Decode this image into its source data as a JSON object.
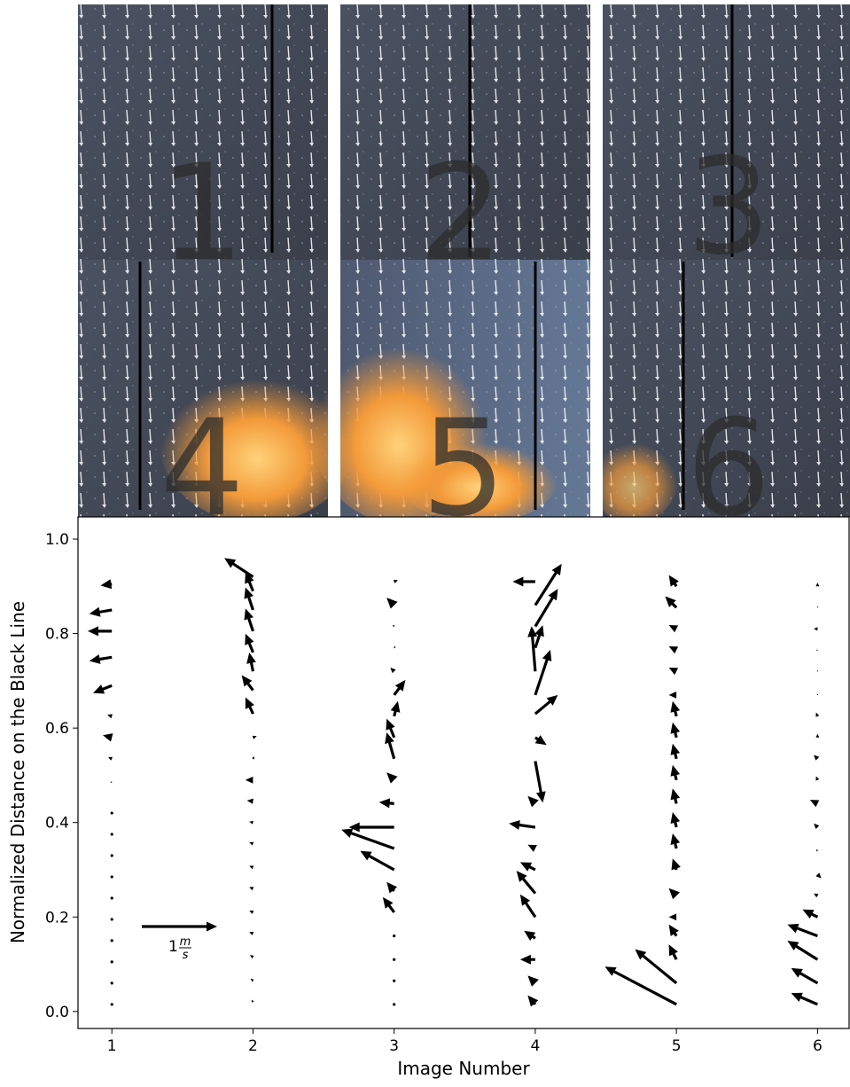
{
  "photos": {
    "labels": [
      "1",
      "2",
      "3",
      "4",
      "5",
      "6"
    ]
  },
  "chart_data": {
    "type": "quiver",
    "xlabel": "Image Number",
    "ylabel": "Normalized Distance on the Black Line",
    "xlim": [
      0.76,
      6.23
    ],
    "ylim": [
      -0.036,
      1.047
    ],
    "xticks": [
      1,
      2,
      3,
      4,
      5,
      6
    ],
    "yticks": [
      {
        "value": 0,
        "label": "0.0"
      },
      0.2,
      0.4,
      0.6,
      0.8,
      {
        "value": 1,
        "label": "1.0"
      }
    ],
    "color": "#000000",
    "key": {
      "value": 1,
      "label": "1",
      "unit_num": "m",
      "unit_den": "s"
    },
    "series": [
      {
        "x": 1,
        "y": [
          0.015,
          0.06,
          0.105,
          0.15,
          0.195,
          0.24,
          0.285,
          0.33,
          0.375,
          0.42,
          0.485,
          0.535,
          0.58,
          0.625,
          0.69,
          0.75,
          0.805,
          0.85,
          0.905
        ],
        "u": [
          0,
          0,
          0,
          0,
          0,
          0,
          0,
          0,
          0,
          0,
          -0.02,
          -0.05,
          -0.12,
          -0.06,
          -0.25,
          -0.3,
          -0.32,
          -0.3,
          -0.15
        ],
        "v": [
          0,
          0,
          0,
          0,
          0,
          0,
          0,
          0,
          0,
          0,
          0.01,
          0.02,
          0.03,
          0.02,
          -0.1,
          -0.05,
          0,
          -0.05,
          -0.02
        ]
      },
      {
        "x": 2,
        "y": [
          0.02,
          0.065,
          0.115,
          0.165,
          0.21,
          0.26,
          0.305,
          0.355,
          0.4,
          0.445,
          0.49,
          0.535,
          0.58,
          0.63,
          0.68,
          0.72,
          0.76,
          0.805,
          0.85,
          0.89,
          0.92
        ],
        "u": [
          -0.02,
          -0.03,
          -0.04,
          -0.05,
          -0.05,
          -0.05,
          -0.05,
          -0.05,
          -0.05,
          -0.08,
          -0.1,
          0.02,
          0.05,
          -0.1,
          -0.15,
          -0.05,
          -0.1,
          -0.1,
          -0.1,
          -0.1,
          -0.38
        ],
        "v": [
          0.03,
          0.03,
          0.03,
          0.02,
          0.02,
          0.02,
          0.02,
          0.02,
          0.01,
          0.01,
          0,
          0.03,
          0.02,
          0.22,
          0.2,
          0.25,
          0.25,
          0.3,
          0.3,
          0.25,
          0.25
        ]
      },
      {
        "x": 3,
        "y": [
          0.015,
          0.065,
          0.11,
          0.16,
          0.21,
          0.255,
          0.3,
          0.345,
          0.39,
          0.44,
          0.49,
          0.535,
          0.58,
          0.625,
          0.67,
          0.72,
          0.77,
          0.815,
          0.86,
          0.91
        ],
        "u": [
          0,
          0,
          0,
          0,
          -0.15,
          -0.1,
          -0.45,
          -0.7,
          -0.6,
          -0.2,
          -0.1,
          -0.1,
          -0.1,
          0.05,
          0.15,
          -0.05,
          0.02,
          -0.02,
          -0.1,
          0.05
        ],
        "v": [
          0,
          0,
          0,
          0.01,
          0.2,
          0.12,
          0.25,
          0.25,
          0,
          0.02,
          0.1,
          0.35,
          0.25,
          0.2,
          0.2,
          0.05,
          0.02,
          0.02,
          0.1,
          0.02
        ]
      },
      {
        "x": 4,
        "y": [
          0.015,
          0.06,
          0.11,
          0.155,
          0.2,
          0.25,
          0.3,
          0.345,
          0.39,
          0.44,
          0.53,
          0.58,
          0.63,
          0.67,
          0.72,
          0.77,
          0.815,
          0.86,
          0.91
        ],
        "u": [
          -0.1,
          -0.1,
          -0.2,
          -0.15,
          -0.2,
          -0.25,
          -0.2,
          -0.1,
          -0.35,
          -0.1,
          0.1,
          0.15,
          0.3,
          0.2,
          -0.05,
          0.1,
          0.3,
          0.35,
          -0.3
        ],
        "v": [
          0.12,
          0.1,
          0,
          0.1,
          0.3,
          0.3,
          0.1,
          0.05,
          0.05,
          0.1,
          -0.55,
          -0.1,
          0.25,
          0.6,
          0.6,
          0.3,
          0.5,
          0.55,
          0
        ]
      },
      {
        "x": 5,
        "y": [
          0.015,
          0.06,
          0.11,
          0.16,
          0.2,
          0.245,
          0.3,
          0.345,
          0.39,
          0.44,
          0.49,
          0.535,
          0.58,
          0.625,
          0.67,
          0.72,
          0.765,
          0.81,
          0.855,
          0.9
        ],
        "u": [
          -0.95,
          -0.55,
          -0.1,
          -0.1,
          -0.1,
          -0.1,
          -0.05,
          -0.05,
          -0.05,
          -0.05,
          -0.05,
          -0.05,
          -0.05,
          -0.05,
          -0.1,
          -0.1,
          -0.1,
          -0.1,
          -0.15,
          -0.1
        ],
        "v": [
          0.5,
          0.45,
          0.2,
          0.15,
          0,
          0.1,
          0.15,
          0.2,
          0.2,
          0.2,
          0.2,
          0.2,
          0.2,
          0.2,
          0,
          0.05,
          0.05,
          0.05,
          0.15,
          0.15
        ]
      },
      {
        "x": 6,
        "y": [
          0.015,
          0.06,
          0.11,
          0.16,
          0.2,
          0.245,
          0.29,
          0.34,
          0.39,
          0.44,
          0.49,
          0.535,
          0.58,
          0.625,
          0.67,
          0.72,
          0.765,
          0.81,
          0.855,
          0.9
        ],
        "u": [
          -0.35,
          -0.35,
          -0.4,
          -0.4,
          -0.2,
          -0.05,
          0.05,
          -0.02,
          -0.05,
          -0.1,
          -0.02,
          -0.05,
          0,
          -0.02,
          0,
          0,
          -0.02,
          -0.05,
          0,
          0
        ],
        "v": [
          0.15,
          0.2,
          0.25,
          0.15,
          0.1,
          0.03,
          -0.05,
          0.02,
          0.05,
          0.05,
          0.05,
          0.05,
          0.05,
          0.05,
          0.02,
          0.02,
          0,
          0,
          0.02,
          0.05
        ]
      }
    ]
  }
}
